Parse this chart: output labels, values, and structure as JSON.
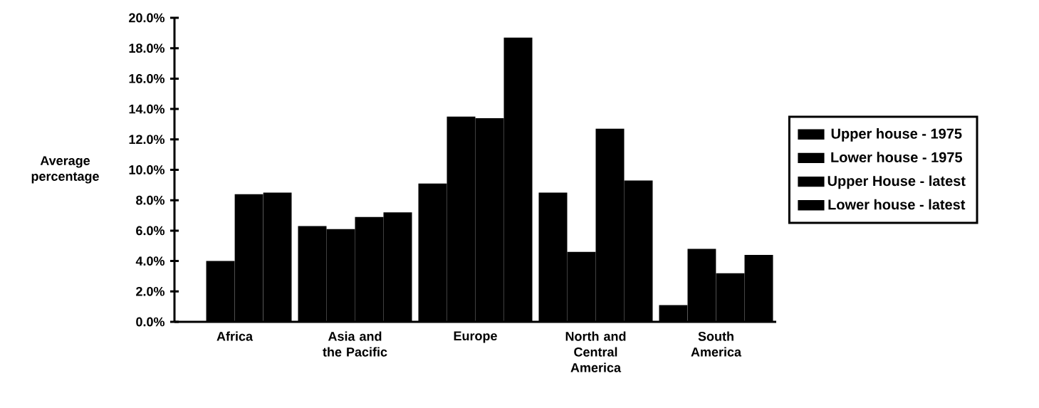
{
  "chart_data": {
    "type": "bar",
    "ylabel": "Average percentage",
    "categories": [
      "Africa",
      "Asia and the Pacific",
      "Europe",
      "North and Central America",
      "South America"
    ],
    "series": [
      {
        "name": "Upper house - 1975",
        "color": "#000000",
        "values": [
          0,
          6.3,
          9.1,
          8.5,
          1.1
        ]
      },
      {
        "name": "Lower house - 1975",
        "color": "#000000",
        "values": [
          4.0,
          6.1,
          13.5,
          4.6,
          4.8
        ]
      },
      {
        "name": "Upper House - latest",
        "color": "#000000",
        "values": [
          8.4,
          6.9,
          13.4,
          12.7,
          3.2
        ]
      },
      {
        "name": "Lower house - latest",
        "color": "#000000",
        "values": [
          8.5,
          7.2,
          18.7,
          9.3,
          4.4
        ]
      }
    ],
    "ylim": [
      0,
      20
    ],
    "yticks": [
      {
        "value": 0,
        "label": "0.0%"
      },
      {
        "value": 2,
        "label": "2.0%"
      },
      {
        "value": 4,
        "label": "4.0%"
      },
      {
        "value": 6,
        "label": "6.0%"
      },
      {
        "value": 8,
        "label": "8.0%"
      },
      {
        "value": 10,
        "label": "10.0%"
      },
      {
        "value": 12,
        "label": "12.0%"
      },
      {
        "value": 14,
        "label": "14.0%"
      },
      {
        "value": 16,
        "label": "16.0%"
      },
      {
        "value": 18,
        "label": "18.0%"
      },
      {
        "value": 20,
        "label": "20.0%"
      }
    ],
    "legend": "right"
  }
}
